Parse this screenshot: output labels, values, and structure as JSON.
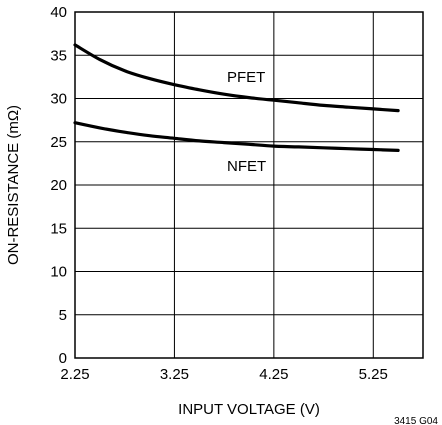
{
  "chart_data": {
    "type": "line",
    "xlabel": "INPUT VOLTAGE (V)",
    "ylabel": "ON-RESISTANCE (mΩ)",
    "xlim": [
      2.25,
      5.75
    ],
    "ylim": [
      0,
      40
    ],
    "x_ticks": [
      2.25,
      3.25,
      4.25,
      5.25
    ],
    "x_tick_labels": [
      "2.25",
      "3.25",
      "4.25",
      "5.25"
    ],
    "y_ticks": [
      0,
      5,
      10,
      15,
      20,
      25,
      30,
      35,
      40
    ],
    "y_tick_labels": [
      "0",
      "5",
      "10",
      "15",
      "20",
      "25",
      "30",
      "35",
      "40"
    ],
    "grid": true,
    "series": [
      {
        "name": "PFET",
        "x": [
          2.25,
          2.5,
          2.75,
          3.0,
          3.25,
          3.5,
          3.75,
          4.0,
          4.25,
          4.5,
          4.75,
          5.0,
          5.25,
          5.5
        ],
        "y": [
          36.2,
          34.5,
          33.2,
          32.3,
          31.6,
          31.0,
          30.5,
          30.1,
          29.8,
          29.5,
          29.2,
          29.0,
          28.8,
          28.6
        ]
      },
      {
        "name": "NFET",
        "x": [
          2.25,
          2.5,
          2.75,
          3.0,
          3.25,
          3.5,
          3.75,
          4.0,
          4.25,
          4.5,
          4.75,
          5.0,
          5.25,
          5.5
        ],
        "y": [
          27.2,
          26.6,
          26.1,
          25.7,
          25.4,
          25.1,
          24.9,
          24.7,
          24.5,
          24.4,
          24.3,
          24.2,
          24.1,
          24.0
        ]
      }
    ],
    "figure_id": "3415 G04"
  }
}
